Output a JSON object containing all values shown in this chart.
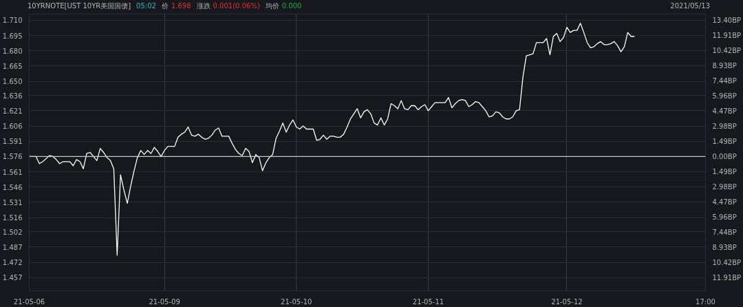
{
  "chart_data": {
    "type": "line",
    "title": "10YRNOTE[UST 10YR美国国债]",
    "subtitle": "2021/05/13",
    "annotations": [
      "05:02",
      "价",
      "1.698",
      "涨跌",
      "0.001(0.06%)",
      "均价",
      "0.000"
    ],
    "categories": [
      "21-05-06",
      null,
      null,
      null,
      null,
      null,
      null,
      null,
      null,
      null,
      null,
      null,
      null,
      null,
      null,
      null,
      null,
      null,
      null,
      null,
      null,
      null,
      null,
      null,
      null,
      null,
      null,
      null,
      null,
      null,
      null,
      null,
      null,
      null,
      null,
      null,
      null,
      null,
      null,
      null,
      "21-05-09",
      null,
      null,
      null,
      null,
      null,
      null,
      null,
      null,
      null,
      null,
      null,
      null,
      null,
      null,
      null,
      null,
      null,
      null,
      null,
      null,
      null,
      null,
      null,
      null,
      null,
      null,
      null,
      null,
      null,
      null,
      null,
      null,
      null,
      null,
      null,
      null,
      null,
      null,
      "21-05-10",
      null,
      null,
      null,
      null,
      null,
      null,
      null,
      null,
      null,
      null,
      null,
      null,
      null,
      null,
      null,
      null,
      null,
      null,
      null,
      null,
      null,
      null,
      null,
      null,
      null,
      null,
      null,
      null,
      null,
      null,
      null,
      null,
      null,
      null,
      null,
      null,
      null,
      null,
      "21-05-11",
      null,
      null,
      null,
      null,
      null,
      null,
      null,
      null,
      null,
      null,
      null,
      null,
      null,
      null,
      null,
      null,
      null,
      null,
      null,
      null,
      null,
      null,
      null,
      null,
      null,
      null,
      null,
      null,
      null,
      null,
      null,
      null,
      null,
      null,
      null,
      null,
      null,
      null,
      null,
      null,
      "21-05-12",
      null,
      null,
      null,
      null,
      null,
      null,
      null,
      null,
      null,
      null,
      null,
      null,
      null,
      null,
      null,
      null,
      null,
      null,
      null,
      null,
      null,
      null,
      null,
      null,
      null,
      null,
      null,
      null,
      null,
      null,
      null,
      null,
      null,
      null,
      null,
      null,
      null,
      null,
      null,
      null,
      "17:00"
    ],
    "series": [
      {
        "color": "#ffffff",
        "values": [
          1.576,
          1.576,
          1.576,
          1.569,
          1.571,
          1.574,
          1.577,
          1.576,
          1.573,
          1.569,
          1.571,
          1.571,
          1.571,
          1.567,
          1.573,
          1.571,
          1.564,
          1.579,
          1.58,
          1.576,
          1.572,
          1.584,
          1.58,
          1.575,
          1.572,
          1.564,
          1.479,
          1.558,
          1.543,
          1.53,
          1.547,
          1.562,
          1.575,
          1.582,
          1.578,
          1.582,
          1.579,
          1.585,
          1.581,
          1.576,
          1.582,
          1.586,
          1.586,
          1.586,
          1.595,
          1.598,
          1.6,
          1.605,
          1.597,
          1.596,
          1.598,
          1.595,
          1.593,
          1.594,
          1.597,
          1.602,
          1.604,
          1.596,
          1.596,
          1.596,
          1.589,
          1.583,
          1.579,
          1.577,
          1.584,
          1.581,
          1.57,
          1.578,
          1.575,
          1.562,
          1.57,
          1.575,
          1.578,
          1.594,
          1.601,
          1.609,
          1.6,
          1.607,
          1.612,
          1.605,
          1.603,
          1.606,
          1.603,
          1.603,
          1.603,
          1.592,
          1.593,
          1.597,
          1.593,
          1.596,
          1.596,
          1.595,
          1.595,
          1.598,
          1.605,
          1.613,
          1.618,
          1.623,
          1.614,
          1.62,
          1.622,
          1.618,
          1.609,
          1.607,
          1.614,
          1.607,
          1.613,
          1.628,
          1.626,
          1.623,
          1.631,
          1.623,
          1.622,
          1.626,
          1.626,
          1.622,
          1.625,
          1.627,
          1.621,
          1.625,
          1.629,
          1.629,
          1.629,
          1.629,
          1.634,
          1.624,
          1.628,
          1.631,
          1.632,
          1.631,
          1.625,
          1.627,
          1.63,
          1.629,
          1.625,
          1.621,
          1.615,
          1.616,
          1.62,
          1.619,
          1.615,
          1.613,
          1.613,
          1.615,
          1.621,
          1.622,
          1.654,
          1.675,
          1.676,
          1.677,
          1.688,
          1.688,
          1.688,
          1.692,
          1.676,
          1.694,
          1.697,
          1.689,
          1.693,
          1.703,
          1.698,
          1.7,
          1.7,
          1.707,
          1.698,
          1.688,
          1.683,
          1.684,
          1.687,
          1.689,
          1.686,
          1.686,
          1.687,
          1.689,
          1.685,
          1.679,
          1.684,
          1.698,
          1.694,
          1.694,
          null,
          null,
          null,
          null,
          null,
          null,
          null,
          null,
          null,
          null,
          null,
          null,
          null,
          null,
          null,
          null,
          null,
          null,
          null,
          null,
          null
        ]
      }
    ],
    "ylim": [
      1.444,
      1.716
    ],
    "yticks": [
      {
        "value": 1.71,
        "label": "1.710"
      },
      1.695,
      {
        "value": 1.68,
        "label": "1.680"
      },
      1.665,
      {
        "value": 1.65,
        "label": "1.650"
      },
      1.636,
      1.621,
      1.606,
      1.591,
      1.576,
      1.561,
      1.546,
      1.531,
      1.516,
      1.502,
      1.487,
      1.472,
      1.457
    ],
    "y2lim": [
      -13.2,
      14.0
    ],
    "y2ticks": [
      {
        "value": 13.4,
        "label": "13.40BP"
      },
      {
        "value": 11.91,
        "label": "11.91BP"
      },
      {
        "value": 10.42,
        "label": "10.42BP"
      },
      {
        "value": 8.93,
        "label": "8.93BP"
      },
      {
        "value": 7.44,
        "label": "7.44BP"
      },
      {
        "value": 5.96,
        "label": "5.96BP"
      },
      {
        "value": 4.47,
        "label": "4.47BP"
      },
      {
        "value": 2.98,
        "label": "2.98BP"
      },
      {
        "value": 1.49,
        "label": "1.49BP"
      },
      {
        "value": 0,
        "label": "0.00BP"
      },
      {
        "value": -1.49,
        "label": "1.49BP"
      },
      {
        "value": -2.98,
        "label": "2.98BP"
      },
      {
        "value": -4.47,
        "label": "4.47BP"
      },
      {
        "value": -5.96,
        "label": "5.96BP"
      },
      {
        "value": -7.44,
        "label": "7.44BP"
      },
      {
        "value": -8.93,
        "label": "8.93BP"
      },
      {
        "value": -10.42,
        "label": "10.42BP"
      },
      {
        "value": -11.91,
        "label": "11.91BP"
      }
    ],
    "ref_lines": [
      {
        "axis": "y",
        "value": 1.576,
        "color": "#c8c8c8"
      }
    ],
    "grid": true
  }
}
